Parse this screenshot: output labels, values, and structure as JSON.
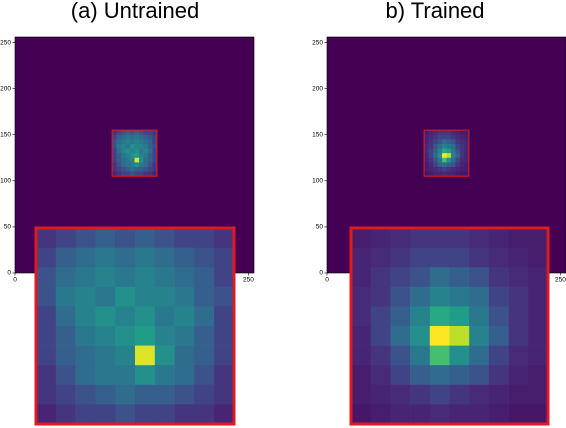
{
  "chart_data": [
    {
      "type": "heatmap",
      "title": "(a) Untrained",
      "colormap": "viridis",
      "clim": [
        0,
        1
      ],
      "xlim": [
        0,
        256
      ],
      "ylim": [
        0,
        256
      ],
      "xticks": [
        0,
        250
      ],
      "yticks": [
        0,
        50,
        100,
        150,
        200,
        250
      ],
      "zoom_box": {
        "x": [
          104,
          152
        ],
        "y": [
          105,
          155
        ]
      },
      "values": [
        [
          0.15,
          0.2,
          0.25,
          0.3,
          0.25,
          0.3,
          0.25,
          0.2,
          0.2,
          0.15
        ],
        [
          0.2,
          0.3,
          0.35,
          0.4,
          0.35,
          0.4,
          0.35,
          0.3,
          0.25,
          0.2
        ],
        [
          0.25,
          0.35,
          0.4,
          0.45,
          0.4,
          0.45,
          0.4,
          0.35,
          0.3,
          0.2
        ],
        [
          0.25,
          0.4,
          0.45,
          0.4,
          0.5,
          0.45,
          0.45,
          0.4,
          0.3,
          0.25
        ],
        [
          0.2,
          0.35,
          0.45,
          0.5,
          0.45,
          0.5,
          0.4,
          0.45,
          0.35,
          0.2
        ],
        [
          0.2,
          0.3,
          0.4,
          0.45,
          0.5,
          0.55,
          0.45,
          0.4,
          0.3,
          0.2
        ],
        [
          0.2,
          0.3,
          0.35,
          0.4,
          0.45,
          0.95,
          0.5,
          0.35,
          0.3,
          0.2
        ],
        [
          0.15,
          0.25,
          0.35,
          0.4,
          0.4,
          0.5,
          0.4,
          0.35,
          0.25,
          0.15
        ],
        [
          0.15,
          0.2,
          0.25,
          0.3,
          0.35,
          0.3,
          0.3,
          0.25,
          0.2,
          0.15
        ],
        [
          0.1,
          0.15,
          0.2,
          0.2,
          0.25,
          0.2,
          0.2,
          0.15,
          0.15,
          0.1
        ]
      ]
    },
    {
      "type": "heatmap",
      "title": "b) Trained",
      "colormap": "viridis",
      "clim": [
        0,
        1
      ],
      "xlim": [
        0,
        256
      ],
      "ylim": [
        0,
        256
      ],
      "xticks": [
        0,
        250
      ],
      "yticks": [
        0,
        50,
        100,
        150,
        200,
        250
      ],
      "zoom_box": {
        "x": [
          104,
          152
        ],
        "y": [
          105,
          155
        ]
      },
      "values": [
        [
          0.08,
          0.1,
          0.12,
          0.15,
          0.15,
          0.15,
          0.12,
          0.1,
          0.08,
          0.08
        ],
        [
          0.1,
          0.12,
          0.15,
          0.2,
          0.2,
          0.2,
          0.15,
          0.12,
          0.1,
          0.08
        ],
        [
          0.1,
          0.15,
          0.2,
          0.25,
          0.35,
          0.3,
          0.25,
          0.15,
          0.12,
          0.1
        ],
        [
          0.12,
          0.15,
          0.25,
          0.35,
          0.45,
          0.4,
          0.35,
          0.2,
          0.15,
          0.1
        ],
        [
          0.12,
          0.2,
          0.3,
          0.45,
          0.6,
          0.55,
          0.4,
          0.25,
          0.15,
          0.1
        ],
        [
          0.1,
          0.2,
          0.35,
          0.5,
          1.0,
          0.9,
          0.45,
          0.3,
          0.15,
          0.1
        ],
        [
          0.1,
          0.15,
          0.25,
          0.4,
          0.7,
          0.5,
          0.35,
          0.2,
          0.12,
          0.1
        ],
        [
          0.08,
          0.12,
          0.2,
          0.3,
          0.35,
          0.3,
          0.25,
          0.15,
          0.1,
          0.08
        ],
        [
          0.08,
          0.1,
          0.12,
          0.15,
          0.2,
          0.15,
          0.12,
          0.1,
          0.08,
          0.08
        ],
        [
          0.06,
          0.08,
          0.1,
          0.1,
          0.12,
          0.1,
          0.1,
          0.08,
          0.06,
          0.06
        ]
      ]
    }
  ]
}
